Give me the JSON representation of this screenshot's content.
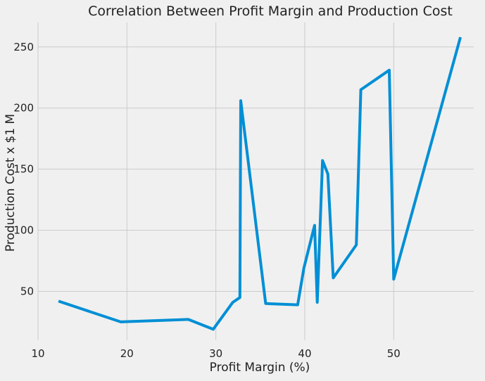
{
  "chart_data": {
    "type": "line",
    "title": "Correlation Between Profit Margin and Production Cost",
    "xlabel": "Profit Margin (%)",
    "ylabel": "Production Cost x $1 M",
    "xlim": [
      10,
      59
    ],
    "ylim": [
      10,
      270
    ],
    "xticks": [
      10,
      20,
      30,
      40,
      50
    ],
    "yticks": [
      50,
      100,
      150,
      200,
      250
    ],
    "grid": true,
    "legend": "none",
    "colors": {
      "background": "#f0f0f0",
      "grid": "#cbcbcb",
      "series": "#008fd5",
      "text": "#222222"
    },
    "series": [
      {
        "color": "#008fd5",
        "x": [
          12.3,
          19.3,
          26.9,
          29.7,
          31.9,
          32.7,
          32.8,
          35.6,
          39.2,
          39.9,
          41.1,
          41.4,
          42.0,
          42.6,
          43.2,
          45.8,
          46.3,
          49.5,
          50.0,
          57.5
        ],
        "y": [
          42,
          25,
          27,
          19,
          41,
          45,
          206,
          40,
          39,
          69,
          104,
          41,
          157,
          146,
          61,
          88,
          215,
          231,
          60,
          258
        ]
      }
    ]
  }
}
